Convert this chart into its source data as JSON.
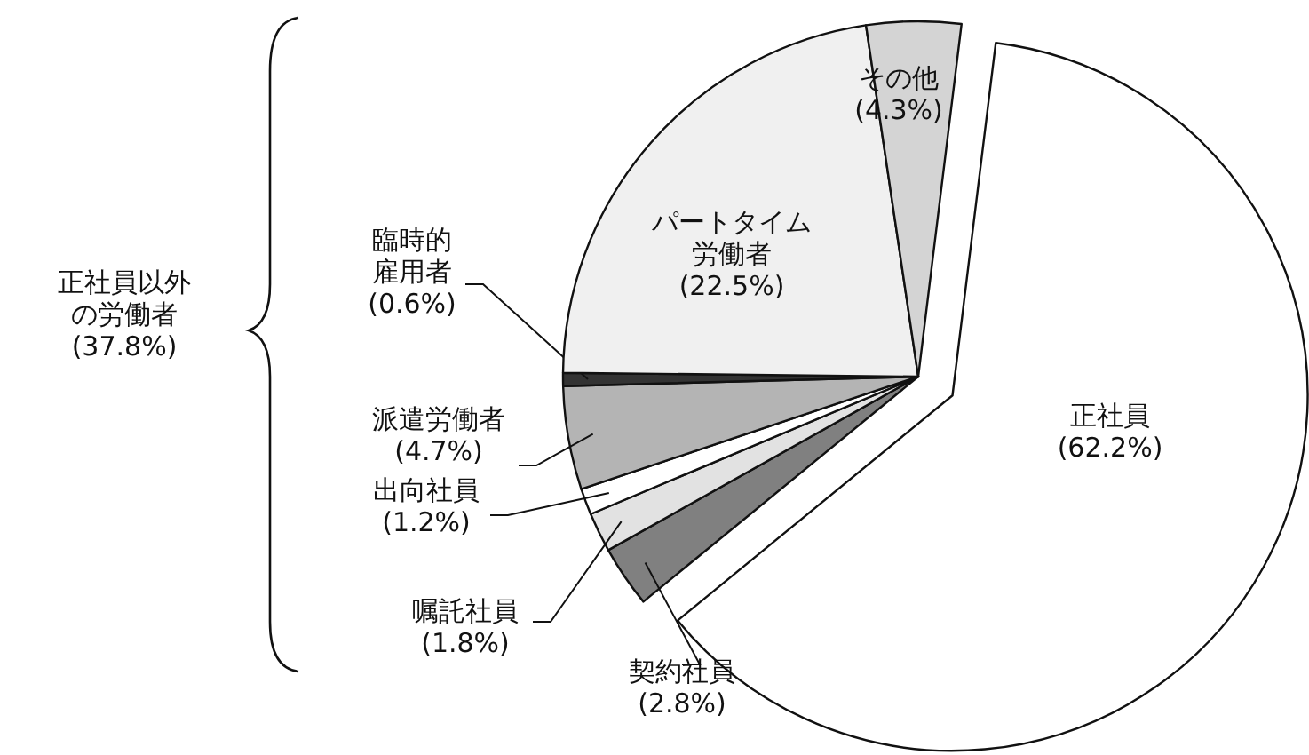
{
  "chart_data": {
    "type": "pie",
    "categories": [
      "正社員",
      "契約社員",
      "嘱託社員",
      "出向社員",
      "派遣労働者",
      "臨時的雇用者",
      "パートタイム労働者",
      "その他"
    ],
    "values": [
      62.2,
      2.8,
      1.8,
      1.2,
      4.7,
      0.6,
      22.5,
      4.3
    ],
    "colors": [
      "#ffffff",
      "#808080",
      "#e2e2e2",
      "#ffffff",
      "#b4b4b4",
      "#333333",
      "#f0f0f0",
      "#d4d4d4"
    ],
    "value_labels": [
      "(62.2%)",
      "(2.8%)",
      "(1.8%)",
      "(1.2%)",
      "(4.7%)",
      "(0.6%)",
      "(22.5%)",
      "(4.3%)"
    ],
    "annotations": [
      "正社員以外の労働者(37.8%)"
    ]
  }
}
